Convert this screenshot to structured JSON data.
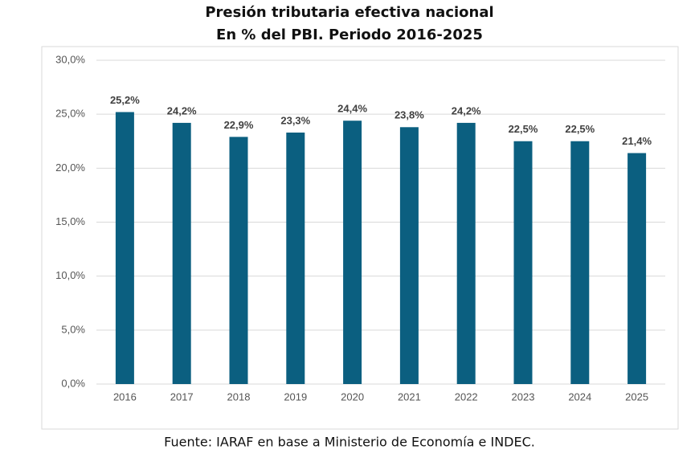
{
  "chart_data": {
    "type": "bar",
    "title": "Presión tributaria efectiva nacional",
    "subtitle": "En % del PBI. Periodo 2016-2025",
    "source": "Fuente: IARAF en base a Ministerio de Economía e INDEC.",
    "categories": [
      "2016",
      "2017",
      "2018",
      "2019",
      "2020",
      "2021",
      "2022",
      "2023",
      "2024",
      "2025"
    ],
    "values": [
      25.2,
      24.2,
      22.9,
      23.3,
      24.4,
      23.8,
      24.2,
      22.5,
      22.5,
      21.4
    ],
    "value_labels": [
      "25,2%",
      "24,2%",
      "22,9%",
      "23,3%",
      "24,4%",
      "23,8%",
      "24,2%",
      "22,5%",
      "22,5%",
      "21,4%"
    ],
    "color": "#0b5f80",
    "ylim": [
      0,
      30
    ],
    "yticks": [
      {
        "value": 0,
        "label": "0,0%"
      },
      {
        "value": 5,
        "label": "5,0%"
      },
      {
        "value": 10,
        "label": "10,0%"
      },
      {
        "value": 15,
        "label": "15,0%"
      },
      {
        "value": 20,
        "label": "20,0%"
      },
      {
        "value": 25,
        "label": "25,0%"
      },
      {
        "value": 30,
        "label": "30,0%"
      }
    ],
    "grid": true
  }
}
